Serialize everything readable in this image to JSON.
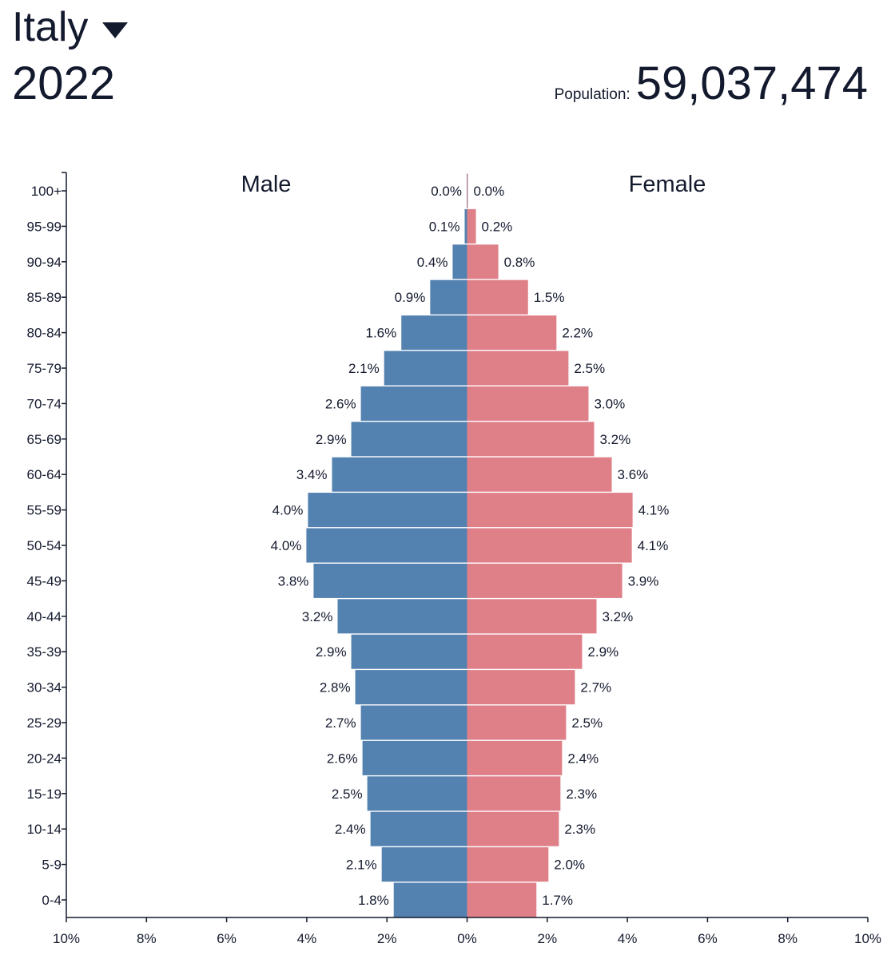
{
  "header": {
    "country": "Italy",
    "year": "2022",
    "population_label": "Population:",
    "population_value": "59,037,474"
  },
  "colors": {
    "male": "#5381b0",
    "female": "#df7f88",
    "text": "#141a2e"
  },
  "chart_data": {
    "type": "bar",
    "orientation": "horizontal-pyramid",
    "categories": [
      "100+",
      "95-99",
      "90-94",
      "85-89",
      "80-84",
      "75-79",
      "70-74",
      "65-69",
      "60-64",
      "55-59",
      "50-54",
      "45-49",
      "40-44",
      "35-39",
      "30-34",
      "25-29",
      "20-24",
      "15-19",
      "10-14",
      "5-9",
      "0-4"
    ],
    "series": [
      {
        "name": "Male",
        "values": [
          0.01,
          0.06,
          0.36,
          0.92,
          1.64,
          2.07,
          2.65,
          2.89,
          3.37,
          3.97,
          4.01,
          3.83,
          3.23,
          2.89,
          2.79,
          2.65,
          2.61,
          2.49,
          2.41,
          2.13,
          1.83
        ],
        "labels": [
          "0.0%",
          "0.1%",
          "0.4%",
          "0.9%",
          "1.6%",
          "2.1%",
          "2.6%",
          "2.9%",
          "3.4%",
          "4.0%",
          "4.0%",
          "3.8%",
          "3.2%",
          "2.9%",
          "2.8%",
          "2.7%",
          "2.6%",
          "2.5%",
          "2.4%",
          "2.1%",
          "1.8%"
        ]
      },
      {
        "name": "Female",
        "values": [
          0.02,
          0.22,
          0.78,
          1.52,
          2.23,
          2.53,
          3.03,
          3.17,
          3.61,
          4.13,
          4.11,
          3.87,
          3.23,
          2.87,
          2.69,
          2.47,
          2.37,
          2.33,
          2.29,
          2.03,
          1.73
        ],
        "labels": [
          "0.0%",
          "0.2%",
          "0.8%",
          "1.5%",
          "2.2%",
          "2.5%",
          "3.0%",
          "3.2%",
          "3.6%",
          "4.1%",
          "4.1%",
          "3.9%",
          "3.2%",
          "2.9%",
          "2.7%",
          "2.5%",
          "2.4%",
          "2.3%",
          "2.3%",
          "2.0%",
          "1.7%"
        ]
      }
    ],
    "xlim": [
      -10,
      10
    ],
    "xticks": [
      "10%",
      "8%",
      "6%",
      "4%",
      "2%",
      "0%",
      "2%",
      "4%",
      "6%",
      "8%",
      "10%"
    ],
    "xtick_values": [
      -10,
      -8,
      -6,
      -4,
      -2,
      0,
      2,
      4,
      6,
      8,
      10
    ],
    "grid": false,
    "xlabel": "",
    "ylabel": ""
  }
}
